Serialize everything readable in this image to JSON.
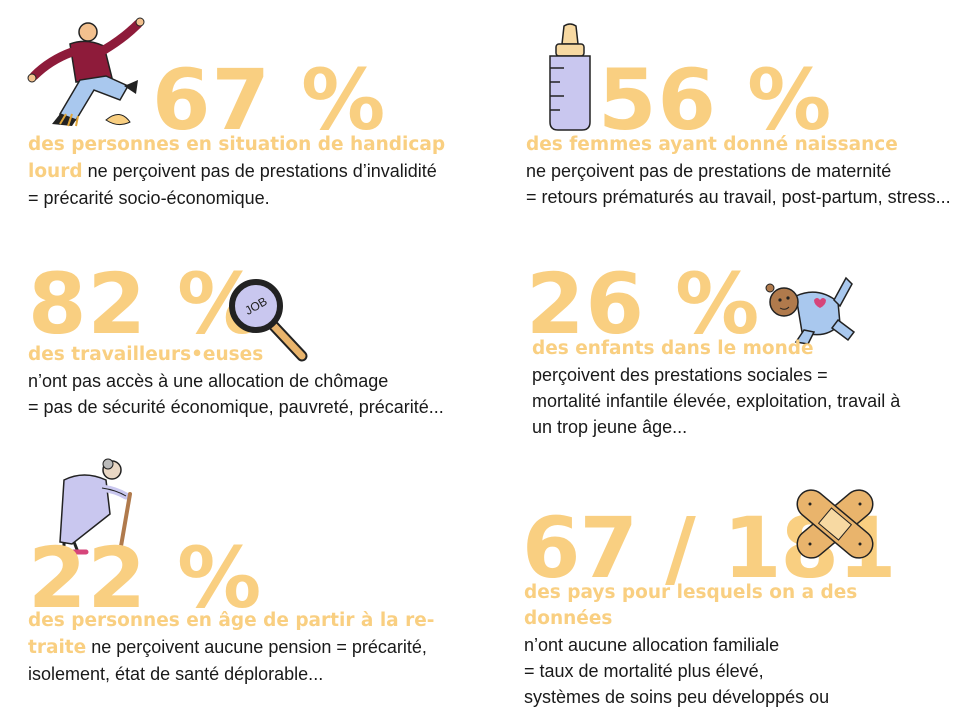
{
  "stats": [
    {
      "number": "67 %",
      "highlight_1": "des personnes en situation de handicap",
      "highlight_2": "lourd",
      "text_1": " ne perçoivent pas de prestations d’invalidité",
      "text_2": "= précarité socio-économique.",
      "icon": "falling-person-icon"
    },
    {
      "number": "56 %",
      "highlight_1": "des femmes ayant donné naissance",
      "text_1": "ne perçoivent pas de prestations de maternité",
      "text_2": "= retours prématurés au travail, post-partum, stress...",
      "icon": "baby-bottle-icon"
    },
    {
      "number": "82 %",
      "highlight_1": "des travailleurs•euses",
      "text_1": "n’ont pas accès à une allocation de chômage",
      "text_2": "= pas de sécurité économique, pauvreté, précarité...",
      "icon": "magnifier-job-icon",
      "icon_label": "JOB"
    },
    {
      "number": "26 %",
      "highlight_1": "des enfants dans le monde",
      "text_1": "perçoivent des prestations sociales =",
      "text_2": "mortalité infantile élevée, exploitation, travail à",
      "text_3": "un trop jeune âge...",
      "icon": "baby-icon"
    },
    {
      "number": "22 %",
      "highlight_1": "des personnes en âge de partir à la re-",
      "highlight_2": "traite",
      "text_1": " ne perçoivent aucune pension = précarité,",
      "text_2": "isolement, état de santé déplorable...",
      "icon": "elderly-woman-icon"
    },
    {
      "number": "67 / 181",
      "highlight_1": "des pays pour lesquels on a des",
      "highlight_2": "données",
      "text_1": "n’ont aucune allocation familiale",
      "text_2": "= taux de mortalité plus élevé,",
      "text_3": "systèmes de soins peu développés ou",
      "icon": "bandage-icon"
    }
  ],
  "colors": {
    "accent": "#f9cf81",
    "text": "#1a1a1a",
    "lavender": "#c9c7ef",
    "maroon": "#8e1b3a",
    "light_blue": "#a9c8ee",
    "skin": "#f2c08e",
    "bandage": "#e9b46c"
  }
}
